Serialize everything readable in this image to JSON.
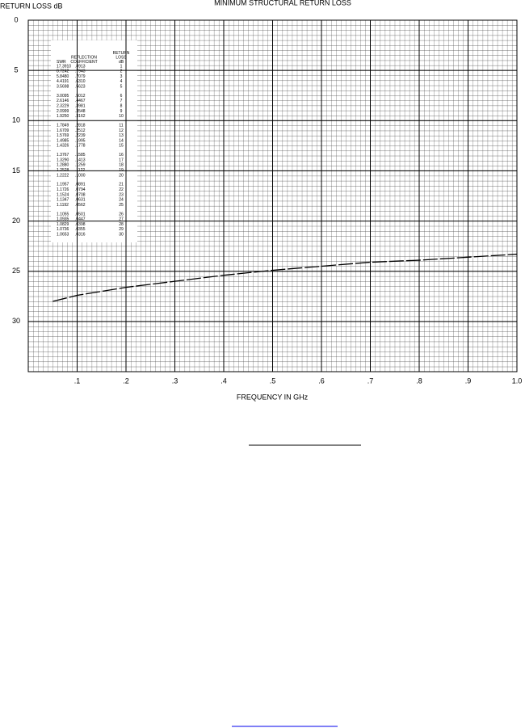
{
  "chart_data": {
    "type": "line",
    "title": "MINIMUM STRUCTURAL RETURN LOSS",
    "ylabel": "RETURN LOSS dB",
    "xlabel": "FREQUENCY IN GHz",
    "x": [
      0.05,
      0.1,
      0.2,
      0.3,
      0.4,
      0.5,
      0.6,
      0.7,
      0.8,
      0.9,
      1.0
    ],
    "series": [
      {
        "color": "#000000",
        "values": [
          28.0,
          27.4,
          26.6,
          26.0,
          25.4,
          24.9,
          24.5,
          24.1,
          23.9,
          23.6,
          23.3
        ]
      }
    ],
    "xlim": [
      0,
      1
    ],
    "ylim": [
      0,
      35
    ],
    "y_reversed": true,
    "xticks": [
      {
        "value": 0.1,
        "label": ".1"
      },
      {
        "value": 0.2,
        "label": ".2"
      },
      {
        "value": 0.3,
        "label": ".3"
      },
      {
        "value": 0.4,
        "label": ".4"
      },
      {
        "value": 0.5,
        "label": ".5"
      },
      {
        "value": 0.6,
        "label": ".6"
      },
      {
        "value": 0.7,
        "label": ".7"
      },
      {
        "value": 0.8,
        "label": ".8"
      },
      {
        "value": 0.9,
        "label": ".9"
      },
      {
        "value": 1.0,
        "label": "1.0"
      }
    ],
    "yticks": [
      0,
      5,
      10,
      15,
      20,
      25,
      30
    ],
    "grid": true,
    "table": {
      "headers": [
        [
          "SWR"
        ],
        [
          "REFLECTION",
          "COEFFICIENT"
        ],
        [
          "RETURN",
          "LOSS",
          "dB"
        ]
      ],
      "rows": [
        [
          "17.3910",
          ".8913",
          "1"
        ],
        [
          "8.7242",
          ".7943",
          "2"
        ],
        [
          "5.8480",
          ".7079",
          "3"
        ],
        [
          "4.4191",
          ".6310",
          "4"
        ],
        [
          "3.5698",
          ".5623",
          "5"
        ],
        [
          "3.0095",
          ".5012",
          "6"
        ],
        [
          "2.6146",
          ".4467",
          "7"
        ],
        [
          "2.3229",
          ".3981",
          "8"
        ],
        [
          "2.0999",
          ".3548",
          "9"
        ],
        [
          "1.9250",
          ".3162",
          "10"
        ],
        [
          "1.7849",
          ".2818",
          "11"
        ],
        [
          "1.6709",
          ".2512",
          "12"
        ],
        [
          "1.5769",
          ".2239",
          "13"
        ],
        [
          "1.4985",
          ".1995",
          "14"
        ],
        [
          "1.4326",
          ".1778",
          "15"
        ],
        [
          "1.3767",
          ".1585",
          "16"
        ],
        [
          "1.3290",
          ".1413",
          "17"
        ],
        [
          "1.2880",
          ".1259",
          "18"
        ],
        [
          "1.2528",
          ".1122",
          "19"
        ],
        [
          "1.2222",
          ".1000",
          "20"
        ],
        [
          "1.1957",
          ".0891",
          "21"
        ],
        [
          "1.1726",
          ".0794",
          "22"
        ],
        [
          "1.1524",
          ".0708",
          "23"
        ],
        [
          "1.1347",
          ".0631",
          "24"
        ],
        [
          "1.1192",
          ".0562",
          "25"
        ],
        [
          "1.1055",
          ".0501",
          "26"
        ],
        [
          "1.0935",
          ".0447",
          "27"
        ],
        [
          "1.0829",
          ".0398",
          "28"
        ],
        [
          "1.0736",
          ".0355",
          "29"
        ],
        [
          "1.0653",
          ".0316",
          "30"
        ]
      ]
    }
  }
}
